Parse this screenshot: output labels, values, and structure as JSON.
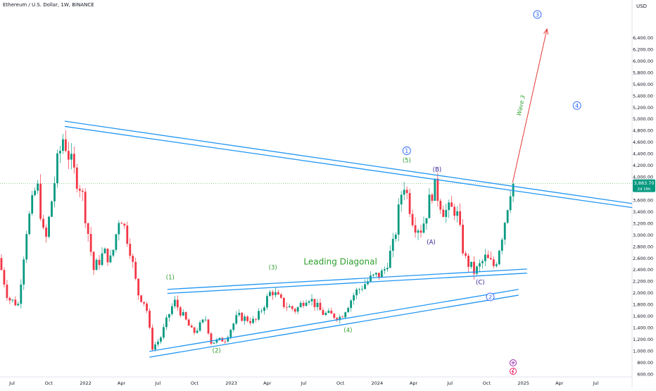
{
  "header": {
    "symbol_title": "Ethereum / U.S. Dollar, 1W, BINANCE",
    "currency": "USD"
  },
  "colors": {
    "up": "#089981",
    "down": "#f23645",
    "trendline": "#2196f3",
    "wave_green": "#2e9e2e",
    "wave_navy": "#311b92",
    "wave_blue": "#2962ff",
    "arrow": "#e53935",
    "price_line": "#4caf50",
    "axis_text": "#787b86",
    "purple": "#9c27b0"
  },
  "chart_data": {
    "type": "candlestick",
    "title": "Ethereum / U.S. Dollar, 1W, BINANCE",
    "interval": "1W",
    "exchange": "BINANCE",
    "x_range": [
      "2021-06-01",
      "2025-09-30"
    ],
    "ylim": [
      550,
      7050
    ],
    "y_ticks": [
      600,
      800,
      1000,
      1200,
      1400,
      1600,
      1800,
      2000,
      2200,
      2400,
      2600,
      2800,
      3000,
      3200,
      3400,
      3600,
      3800,
      4000,
      4200,
      4400,
      4600,
      4800,
      5000,
      5200,
      5400,
      5600,
      5800,
      6000,
      6200,
      6400
    ],
    "y_tick_labels": [
      "600.00",
      "800.00",
      "1,000.00",
      "1,200.00",
      "1,400.00",
      "1,600.00",
      "1,800.00",
      "2,000.00",
      "2,200.00",
      "2,400.00",
      "2,600.00",
      "2,800.00",
      "3,000.00",
      "3,200.00",
      "3,400.00",
      "3,600.00",
      "3,800.00",
      "4,000.00",
      "4,200.00",
      "4,400.00",
      "4,600.00",
      "4,800.00",
      "5,000.00",
      "5,200.00",
      "5,400.00",
      "5,600.00",
      "5,800.00",
      "6,000.00",
      "6,200.00",
      "6,400.00"
    ],
    "x_ticks": [
      {
        "date": "2021-07-01",
        "label": "Jul"
      },
      {
        "date": "2021-10-01",
        "label": "Oct"
      },
      {
        "date": "2022-01-01",
        "label": "2022"
      },
      {
        "date": "2022-04-01",
        "label": "Apr"
      },
      {
        "date": "2022-07-01",
        "label": "Jul"
      },
      {
        "date": "2022-10-01",
        "label": "Oct"
      },
      {
        "date": "2023-01-01",
        "label": "2023"
      },
      {
        "date": "2023-04-01",
        "label": "Apr"
      },
      {
        "date": "2023-07-01",
        "label": "Jul"
      },
      {
        "date": "2023-10-01",
        "label": "Oct"
      },
      {
        "date": "2024-01-01",
        "label": "2024"
      },
      {
        "date": "2024-04-01",
        "label": "Apr"
      },
      {
        "date": "2024-07-01",
        "label": "Jul"
      },
      {
        "date": "2024-10-01",
        "label": "Oct"
      },
      {
        "date": "2025-01-01",
        "label": "2025"
      },
      {
        "date": "2025-04-01",
        "label": "Apr"
      },
      {
        "date": "2025-07-01",
        "label": "Jul"
      }
    ],
    "current_price": 3883.7,
    "current_price_label": "3,883.70",
    "countdown_label": "2d 16h",
    "price_path": [
      {
        "date": "2021-06-01",
        "price": 2600
      },
      {
        "date": "2021-06-25",
        "price": 1900
      },
      {
        "date": "2021-07-20",
        "price": 1800
      },
      {
        "date": "2021-08-10",
        "price": 3100
      },
      {
        "date": "2021-09-05",
        "price": 3900
      },
      {
        "date": "2021-09-25",
        "price": 2800
      },
      {
        "date": "2021-10-25",
        "price": 4200
      },
      {
        "date": "2021-11-10",
        "price": 4700
      },
      {
        "date": "2021-12-05",
        "price": 4100
      },
      {
        "date": "2021-12-25",
        "price": 3800
      },
      {
        "date": "2022-01-25",
        "price": 2400
      },
      {
        "date": "2022-02-20",
        "price": 2700
      },
      {
        "date": "2022-03-10",
        "price": 2550
      },
      {
        "date": "2022-04-01",
        "price": 3400
      },
      {
        "date": "2022-04-25",
        "price": 2800
      },
      {
        "date": "2022-05-15",
        "price": 2000
      },
      {
        "date": "2022-06-05",
        "price": 1800
      },
      {
        "date": "2022-06-20",
        "price": 1050
      },
      {
        "date": "2022-07-10",
        "price": 1200
      },
      {
        "date": "2022-08-05",
        "price": 1700
      },
      {
        "date": "2022-08-15",
        "price": 1850
      },
      {
        "date": "2022-09-10",
        "price": 1550
      },
      {
        "date": "2022-10-01",
        "price": 1300
      },
      {
        "date": "2022-11-01",
        "price": 1550
      },
      {
        "date": "2022-11-15",
        "price": 1150
      },
      {
        "date": "2022-12-20",
        "price": 1200
      },
      {
        "date": "2023-01-20",
        "price": 1600
      },
      {
        "date": "2023-03-05",
        "price": 1500
      },
      {
        "date": "2023-04-15",
        "price": 2050
      },
      {
        "date": "2023-05-15",
        "price": 1800
      },
      {
        "date": "2023-06-15",
        "price": 1700
      },
      {
        "date": "2023-07-15",
        "price": 1950
      },
      {
        "date": "2023-08-20",
        "price": 1650
      },
      {
        "date": "2023-10-05",
        "price": 1580
      },
      {
        "date": "2023-11-10",
        "price": 2000
      },
      {
        "date": "2023-12-20",
        "price": 2250
      },
      {
        "date": "2024-01-20",
        "price": 2350
      },
      {
        "date": "2024-02-15",
        "price": 2850
      },
      {
        "date": "2024-03-10",
        "price": 3950
      },
      {
        "date": "2024-04-05",
        "price": 3200
      },
      {
        "date": "2024-04-25",
        "price": 3100
      },
      {
        "date": "2024-05-25",
        "price": 3850
      },
      {
        "date": "2024-06-20",
        "price": 3400
      },
      {
        "date": "2024-07-20",
        "price": 3450
      },
      {
        "date": "2024-08-10",
        "price": 2600
      },
      {
        "date": "2024-09-05",
        "price": 2350
      },
      {
        "date": "2024-10-01",
        "price": 2600
      },
      {
        "date": "2024-10-25",
        "price": 2450
      },
      {
        "date": "2024-11-15",
        "price": 3100
      },
      {
        "date": "2024-12-05",
        "price": 3880
      }
    ],
    "trendlines": [
      {
        "name": "upper-resistance-a",
        "from": {
          "date": "2021-11-10",
          "price": 4960
        },
        "to": {
          "date": "2025-09-30",
          "price": 3540
        }
      },
      {
        "name": "upper-resistance-b",
        "from": {
          "date": "2021-11-10",
          "price": 4870
        },
        "to": {
          "date": "2025-09-30",
          "price": 3470
        }
      },
      {
        "name": "diagonal-upper-a",
        "from": {
          "date": "2022-07-25",
          "price": 2060
        },
        "to": {
          "date": "2025-01-10",
          "price": 2410
        }
      },
      {
        "name": "diagonal-upper-b",
        "from": {
          "date": "2022-07-25",
          "price": 1990
        },
        "to": {
          "date": "2025-01-10",
          "price": 2340
        }
      },
      {
        "name": "diagonal-lower-a",
        "from": {
          "date": "2022-06-10",
          "price": 990
        },
        "to": {
          "date": "2024-12-20",
          "price": 2060
        }
      },
      {
        "name": "diagonal-lower-b",
        "from": {
          "date": "2022-06-10",
          "price": 890
        },
        "to": {
          "date": "2024-12-20",
          "price": 1960
        }
      }
    ],
    "projection": {
      "label": "Wave 3",
      "from": {
        "date": "2024-12-05",
        "price": 3900
      },
      "to": {
        "date": "2025-03-01",
        "price": 6550
      }
    },
    "annotations": [
      {
        "text": "Leading Diagonal",
        "date": "2023-10-01",
        "price": 2490,
        "style": "title"
      },
      {
        "text": "(1)",
        "date": "2022-08-01",
        "price": 2230,
        "style": "green"
      },
      {
        "text": "(2)",
        "date": "2022-11-25",
        "price": 970,
        "style": "green"
      },
      {
        "text": "(3)",
        "date": "2023-04-15",
        "price": 2400,
        "style": "green"
      },
      {
        "text": "(4)",
        "date": "2023-10-20",
        "price": 1320,
        "style": "green"
      },
      {
        "text": "(5)",
        "date": "2024-03-15",
        "price": 4250,
        "style": "green"
      },
      {
        "text": "(B)",
        "date": "2024-05-30",
        "price": 4090,
        "style": "navy"
      },
      {
        "text": "(A)",
        "date": "2024-05-15",
        "price": 2840,
        "style": "navy"
      },
      {
        "text": "(C)",
        "date": "2024-09-15",
        "price": 2150,
        "style": "navy"
      },
      {
        "text": "1",
        "date": "2024-03-15",
        "price": 4450,
        "style": "circle"
      },
      {
        "text": "2",
        "date": "2024-10-10",
        "price": 1930,
        "style": "circle"
      },
      {
        "text": "3",
        "date": "2025-02-05",
        "price": 6800,
        "style": "circle"
      },
      {
        "text": "4",
        "date": "2025-05-15",
        "price": 5230,
        "style": "circle"
      }
    ]
  }
}
